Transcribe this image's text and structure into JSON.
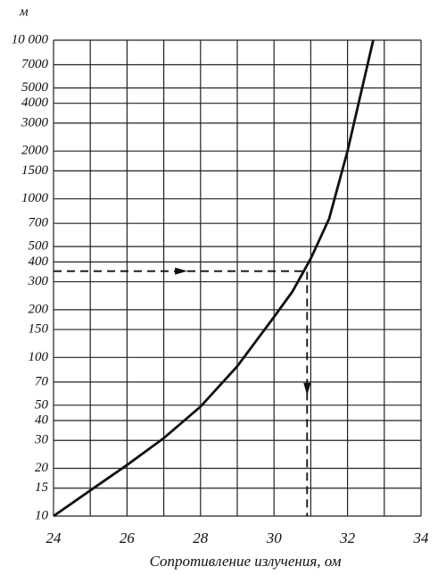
{
  "chart_data": {
    "type": "line",
    "y_label": "м",
    "x_label": "Сопротивление излучения, ом",
    "x": [
      24,
      25,
      26,
      27,
      28,
      29,
      30,
      30.5,
      31,
      31.5,
      32,
      32.3,
      32.7
    ],
    "series": [
      {
        "color": "#111111",
        "values": [
          10,
          14.5,
          21,
          31,
          49,
          88,
          180,
          260,
          420,
          750,
          2000,
          4000,
          10000
        ]
      }
    ],
    "xlim": [
      24,
      34
    ],
    "xticks": [
      24,
      26,
      28,
      30,
      32,
      34
    ],
    "xgrid": [
      24,
      25,
      26,
      27,
      28,
      29,
      30,
      31,
      32,
      33,
      34
    ],
    "ylim": [
      10,
      10000
    ],
    "log_y": true,
    "grid": true,
    "yticks": [
      10,
      15,
      20,
      30,
      40,
      50,
      70,
      100,
      150,
      200,
      300,
      400,
      500,
      700,
      1000,
      1500,
      2000,
      3000,
      4000,
      5000,
      7000,
      {
        "value": 10000,
        "label": "10 000"
      }
    ],
    "reference": {
      "x": 30.9,
      "y": 350
    }
  }
}
